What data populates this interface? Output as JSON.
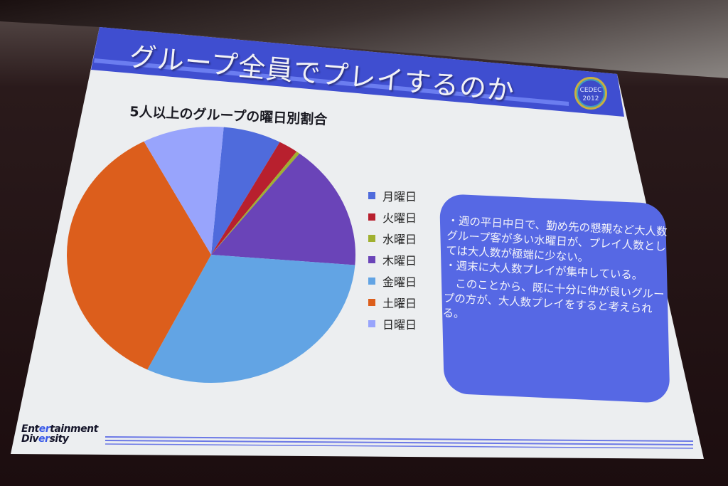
{
  "slide": {
    "title": "グループ全員でプレイするのか",
    "badge": "CEDEC 2012",
    "footer_logo": "Entertainment Diversity",
    "colors": {
      "title_band": "#3f4ed0",
      "slide_bg": "#eceef0",
      "text_box": "#5668e4"
    }
  },
  "chart_data": {
    "type": "pie",
    "title": "5人以上のグループの曜日別割合",
    "categories": [
      "月曜日",
      "火曜日",
      "水曜日",
      "木曜日",
      "金曜日",
      "土曜日",
      "日曜日"
    ],
    "values": [
      6.5,
      2.2,
      0.4,
      15.8,
      31.0,
      35.0,
      9.1
    ],
    "unit": "%",
    "colors": [
      "#4f6bdc",
      "#b8202e",
      "#a0b030",
      "#6a44b8",
      "#62a4e4",
      "#dc5e1c",
      "#98a4fc"
    ],
    "start_angle_deg": 5,
    "direction": "clockwise",
    "legend_position": "right"
  },
  "notes": {
    "bullet1": "・週の平日中日で、勤め先の懇親など大人数グループ客が多い水曜日が、プレイ人数としては大人数が極端に少ない。",
    "bullet2": "・週末に大人数プレイが集中している。",
    "conclusion": "　このことから、既に十分に仲が良いグループの方が、大人数プレイをすると考えられる。"
  }
}
